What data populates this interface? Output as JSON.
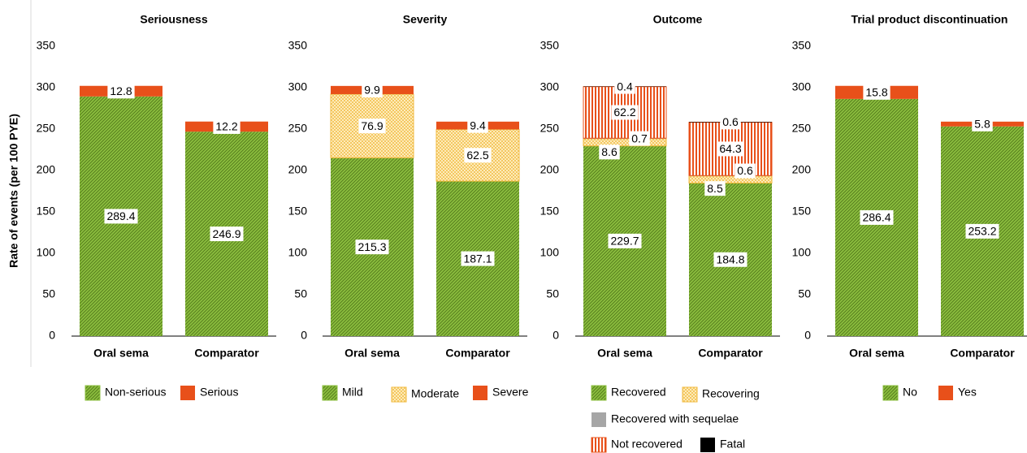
{
  "chart_data": [
    {
      "type": "bar",
      "stacked": true,
      "title": "Seriousness",
      "ylabel": "Rate of events (per 100 PYE)",
      "categories": [
        "Oral sema",
        "Comparator"
      ],
      "ylim": [
        0,
        350
      ],
      "yticks": [
        0,
        50,
        100,
        150,
        200,
        250,
        300,
        350
      ],
      "series": [
        {
          "name": "Non-serious",
          "color": "#8cbf3f",
          "pattern": "diagonal",
          "values": [
            289.4,
            246.9
          ]
        },
        {
          "name": "Serious",
          "color": "#e8501a",
          "values": [
            12.8,
            12.2
          ]
        }
      ]
    },
    {
      "type": "bar",
      "stacked": true,
      "title": "Severity",
      "categories": [
        "Oral sema",
        "Comparator"
      ],
      "ylim": [
        0,
        350
      ],
      "yticks": [
        0,
        50,
        100,
        150,
        200,
        250,
        300,
        350
      ],
      "series": [
        {
          "name": "Mild",
          "color": "#8cbf3f",
          "pattern": "diagonal",
          "values": [
            215.3,
            187.1
          ]
        },
        {
          "name": "Moderate",
          "color": "#f0b83c",
          "pattern": "crosshatch",
          "values": [
            76.9,
            62.5
          ]
        },
        {
          "name": "Severe",
          "color": "#e8501a",
          "values": [
            9.9,
            9.4
          ]
        }
      ]
    },
    {
      "type": "bar",
      "stacked": true,
      "title": "Outcome",
      "categories": [
        "Oral sema",
        "Comparator"
      ],
      "ylim": [
        0,
        350
      ],
      "yticks": [
        0,
        50,
        100,
        150,
        200,
        250,
        300,
        350
      ],
      "series": [
        {
          "name": "Recovered",
          "color": "#8cbf3f",
          "pattern": "diagonal",
          "values": [
            229.7,
            184.8
          ]
        },
        {
          "name": "Recovering",
          "color": "#f0b83c",
          "pattern": "crosshatch",
          "values": [
            8.6,
            8.5
          ]
        },
        {
          "name": "Recovered with sequelae",
          "color": "#a6a6a6",
          "values": [
            0.7,
            0.6
          ]
        },
        {
          "name": "Not recovered",
          "color": "#e8501a",
          "pattern": "vertical",
          "values": [
            62.2,
            64.3
          ]
        },
        {
          "name": "Fatal",
          "color": "#000000",
          "values": [
            0.4,
            0.6
          ]
        }
      ]
    },
    {
      "type": "bar",
      "stacked": true,
      "title": "Trial product discontinuation",
      "categories": [
        "Oral sema",
        "Comparator"
      ],
      "ylim": [
        0,
        350
      ],
      "yticks": [
        0,
        50,
        100,
        150,
        200,
        250,
        300,
        350
      ],
      "series": [
        {
          "name": "No",
          "color": "#8cbf3f",
          "pattern": "diagonal",
          "values": [
            286.4,
            253.2
          ]
        },
        {
          "name": "Yes",
          "color": "#e8501a",
          "values": [
            15.8,
            5.8
          ]
        }
      ]
    }
  ]
}
